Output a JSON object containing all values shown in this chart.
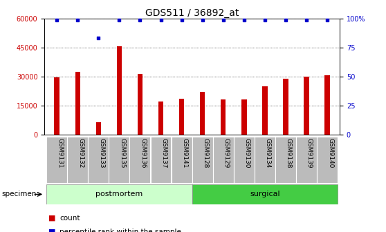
{
  "title": "GDS511 / 36892_at",
  "categories": [
    "GSM9131",
    "GSM9132",
    "GSM9133",
    "GSM9135",
    "GSM9136",
    "GSM9137",
    "GSM9141",
    "GSM9128",
    "GSM9129",
    "GSM9130",
    "GSM9134",
    "GSM9138",
    "GSM9139",
    "GSM9140"
  ],
  "counts": [
    29500,
    32500,
    6500,
    45500,
    31500,
    17000,
    18500,
    22000,
    18000,
    18000,
    25000,
    29000,
    30000,
    30500
  ],
  "percentiles": [
    99,
    99,
    83,
    99,
    99,
    99,
    99,
    99,
    99,
    99,
    99,
    99,
    99,
    99
  ],
  "bar_color": "#cc0000",
  "dot_color": "#0000cc",
  "ylim_left": [
    0,
    60000
  ],
  "ylim_right": [
    0,
    100
  ],
  "yticks_left": [
    0,
    15000,
    30000,
    45000,
    60000
  ],
  "yticks_right": [
    0,
    25,
    50,
    75,
    100
  ],
  "yticklabels_right": [
    "0",
    "25",
    "50",
    "75",
    "100%"
  ],
  "group_postmortem_color": "#ccffcc",
  "group_surgical_color": "#44cc44",
  "tick_bg_color": "#bbbbbb",
  "n_postmortem": 7,
  "n_surgical": 7,
  "title_fontsize": 10,
  "tick_fontsize": 6.5,
  "axis_tick_fontsize": 7,
  "legend_fontsize": 7.5
}
